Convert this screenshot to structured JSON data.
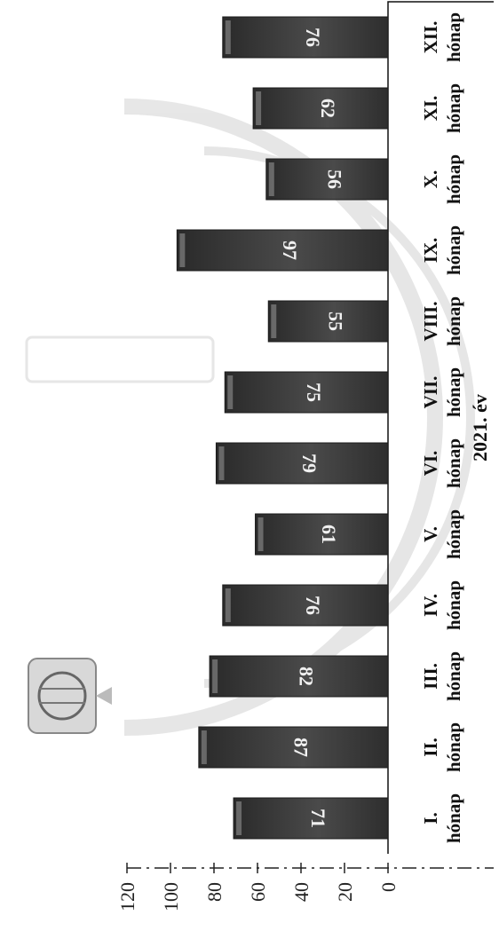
{
  "chart_data": {
    "type": "bar",
    "orientation": "image rotated 90 degrees clockwise; categories run top-to-bottom, values grow leftward",
    "categories": [
      "I. hónap",
      "II. hónap",
      "III. hónap",
      "IV. hónap",
      "V. hónap",
      "VI. hónap",
      "VII. hónap",
      "VIII. hónap",
      "IX. hónap",
      "X. hónap",
      "XI. hónap",
      "XII. hónap"
    ],
    "category_lines": [
      [
        "I.",
        "hónap"
      ],
      [
        "II.",
        "hónap"
      ],
      [
        "III.",
        "hónap"
      ],
      [
        "IV.",
        "hónap"
      ],
      [
        "V.",
        "hónap"
      ],
      [
        "VI.",
        "hónap"
      ],
      [
        "VII.",
        "hónap"
      ],
      [
        "VIII.",
        "hónap"
      ],
      [
        "IX.",
        "hónap"
      ],
      [
        "X.",
        "hónap"
      ],
      [
        "XI.",
        "hónap"
      ],
      [
        "XII.",
        "hónap"
      ]
    ],
    "values": [
      71,
      87,
      82,
      76,
      61,
      79,
      75,
      55,
      97,
      56,
      62,
      76
    ],
    "xlabel": "2021. év",
    "ylabel": "",
    "ylim": [
      0,
      120
    ],
    "yticks": [
      0,
      20,
      40,
      60,
      80,
      100,
      120
    ],
    "bar_color": "#3a3a3a",
    "grid": false,
    "legend": "none"
  }
}
